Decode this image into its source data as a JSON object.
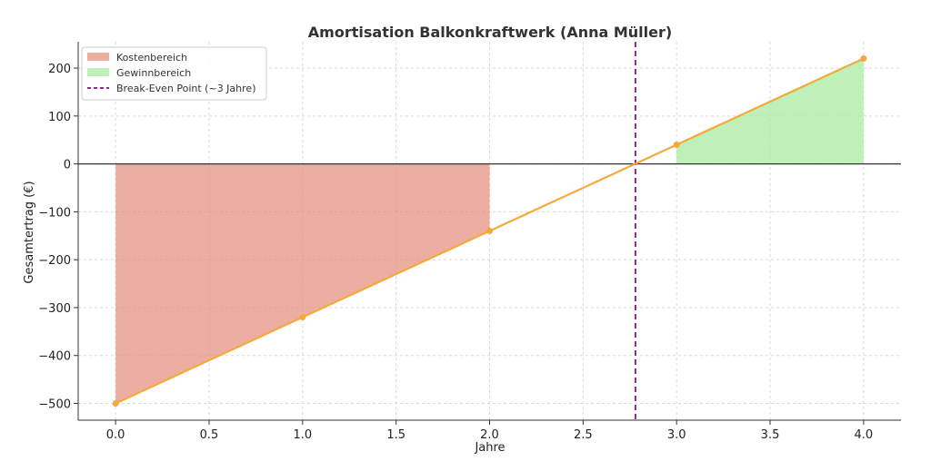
{
  "chart_data": {
    "type": "line",
    "title": "Amortisation Balkonkraftwerk (Anna Müller)",
    "xlabel": "Jahre",
    "ylabel": "Gesamtertrag (€)",
    "xlim": [
      -0.2,
      4.2
    ],
    "ylim": [
      -535,
      255
    ],
    "xticks": [
      0.0,
      0.5,
      1.0,
      1.5,
      2.0,
      2.5,
      3.0,
      3.5,
      4.0
    ],
    "xtick_labels": [
      "0.0",
      "0.5",
      "1.0",
      "1.5",
      "2.0",
      "2.5",
      "3.0",
      "3.5",
      "4.0"
    ],
    "yticks": [
      -500,
      -400,
      -300,
      -200,
      -100,
      0,
      100,
      200
    ],
    "ytick_labels": [
      "−500",
      "−400",
      "−300",
      "−200",
      "−100",
      "0",
      "100",
      "200"
    ],
    "grid": true,
    "legend_position": "top-left",
    "series": [
      {
        "x": [
          0,
          1,
          2,
          3,
          4
        ],
        "y": [
          -500,
          -320,
          -140,
          40,
          220
        ],
        "color": "#f5a93a"
      }
    ],
    "cost_area": {
      "name": "Kostenbereich",
      "x_range": [
        0,
        2
      ],
      "color": "#e58b7b"
    },
    "profit_area": {
      "name": "Gewinnbereich",
      "x_range": [
        3,
        4
      ],
      "color": "#a8eba0"
    },
    "break_even": {
      "name": "Break-Even Point (~3 Jahre)",
      "x": 2.78,
      "color": "#8b2a8c"
    },
    "zero_line_color": "#333333"
  }
}
